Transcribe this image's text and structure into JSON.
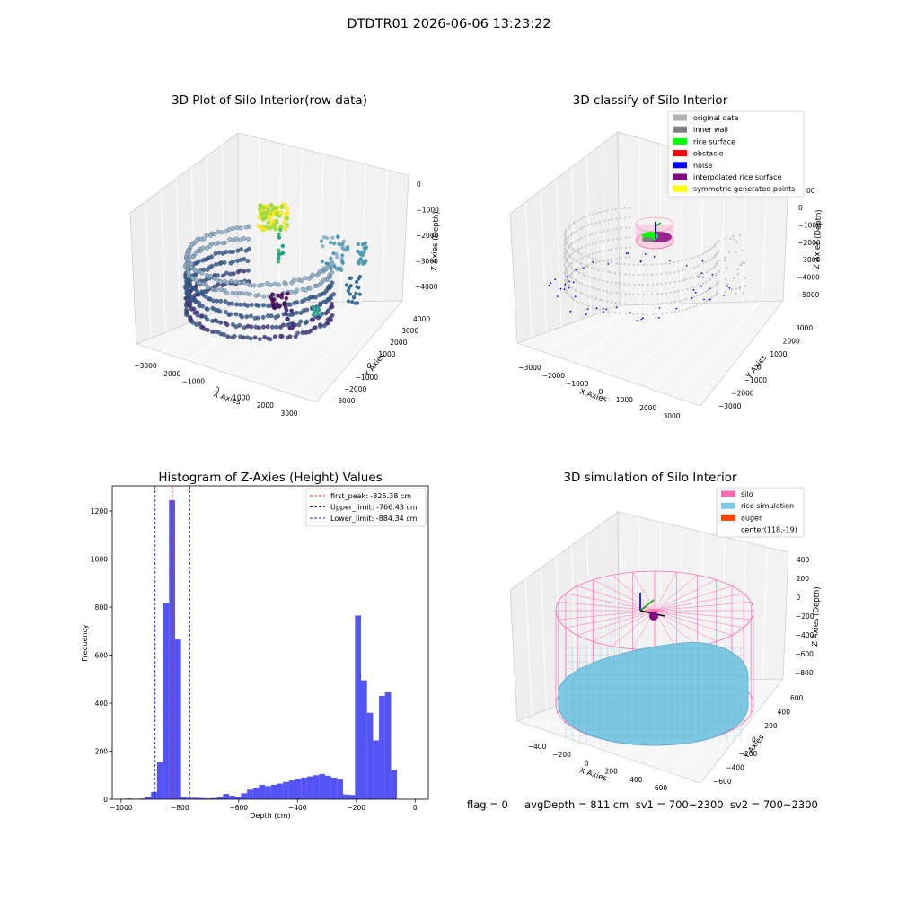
{
  "suptitle": "DTDTR01 2026-06-06 13:23:22",
  "footer": "flag = 0     avgDepth = 811 cm  sv1 = 700~2300  sv2 = 700~2300",
  "colors": {
    "hist_bar": "#4a4af5",
    "first_peak": "#e0302a",
    "limits": "#1f1fb5",
    "silo": "#ff69b4",
    "rice_sim": "#7ec8e3",
    "auger": "#ff4500",
    "pane": "#ececec"
  },
  "chart_data": [
    {
      "type": "scatter",
      "dims": 3,
      "title": "3D Plot of Silo Interior(row data)",
      "xlabel": "X Axies",
      "ylabel": "Y Axies",
      "zlabel": "Z Axies (Depth)",
      "xticks": [
        "−3000",
        "−2000",
        "−1000",
        "0",
        "1000",
        "2000",
        "3000"
      ],
      "yticks": [
        "−3000",
        "−2000",
        "−1000",
        "0",
        "1000",
        "2000",
        "3000",
        "4000"
      ],
      "zticks": [
        "−4000",
        "−3000",
        "−2000",
        "−1000",
        "0"
      ],
      "xlim": [
        -3500,
        3500
      ],
      "ylim": [
        -3500,
        4200
      ],
      "zlim": [
        -4500,
        200
      ],
      "colormap": "viridis"
    },
    {
      "type": "scatter",
      "dims": 3,
      "title": "3D classify of Silo Interior",
      "xlabel": "X Axies",
      "ylabel": "Y Axies",
      "zlabel": "Z Axies (Depth)",
      "xticks": [
        "−3000",
        "−2000",
        "−1000",
        "0",
        "1000",
        "2000",
        "3000"
      ],
      "yticks": [
        "−3000",
        "−2000",
        "−1000",
        "0",
        "1000",
        "2000",
        "3000"
      ],
      "zticks": [
        "−5000",
        "−4000",
        "−3000",
        "−2000",
        "−1000",
        "0"
      ],
      "xlim": [
        -3500,
        3500
      ],
      "ylim": [
        -3500,
        3500
      ],
      "zlim": [
        -5500,
        300
      ],
      "legend_position": "upper right",
      "legend": [
        {
          "label": "original data",
          "color": "#b0b0b0"
        },
        {
          "label": "inner wall",
          "color": "#808080"
        },
        {
          "label": "rice surface",
          "color": "#00ff00"
        },
        {
          "label": "obstacle",
          "color": "#ff0000"
        },
        {
          "label": "noise",
          "color": "#0000ff"
        },
        {
          "label": "interpolated rice surface",
          "color": "#800080"
        },
        {
          "label": "symmetric generated points",
          "color": "#ffff00"
        }
      ],
      "extra_tick": "00"
    },
    {
      "type": "bar",
      "title": "Histogram of Z-Axies (Height) Values",
      "xlabel": "Depth (cm)",
      "ylabel": "Frequency",
      "xlim": [
        -1030,
        45
      ],
      "ylim": [
        0,
        1305
      ],
      "xticks": [
        -1000,
        -800,
        -600,
        -400,
        -200,
        0
      ],
      "xtick_labels": [
        "−1000",
        "−800",
        "−600",
        "−400",
        "−200",
        "0"
      ],
      "yticks": [
        0,
        200,
        400,
        600,
        800,
        1000,
        1200
      ],
      "yticklabels": [
        "0",
        "200",
        "400",
        "600",
        "800",
        "1000",
        "1200"
      ],
      "bin_start": -1000,
      "bin_width": 20.4,
      "values": [
        2,
        3,
        1,
        3,
        10,
        30,
        155,
        815,
        1245,
        665,
        8,
        6,
        6,
        5,
        4,
        5,
        8,
        22,
        15,
        10,
        25,
        40,
        48,
        60,
        55,
        60,
        65,
        72,
        78,
        85,
        90,
        95,
        100,
        105,
        98,
        90,
        82,
        20,
        18,
        765,
        495,
        360,
        245,
        430,
        445,
        120
      ],
      "lines": [
        {
          "label": "first_peak: -825.38 cm",
          "x": -825.38,
          "color": "#e0302a"
        },
        {
          "label": "Upper_limit: -766.43 cm",
          "x": -766.43,
          "color": "#1f1fb5"
        },
        {
          "label": "Lower_limit: -884.34 cm",
          "x": -884.34,
          "color": "#1f1fb5"
        }
      ],
      "legend_position": "upper right"
    },
    {
      "type": "scatter",
      "dims": 3,
      "title": "3D simulation of Silo Interior",
      "xlabel": "X Axies",
      "ylabel": "Y Axies",
      "zlabel": "Z Axies (Depth)",
      "xticks": [
        "−400",
        "−200",
        "0",
        "200",
        "400",
        "600"
      ],
      "yticks": [
        "−600",
        "−400",
        "−200",
        "0",
        "200",
        "400",
        "600"
      ],
      "zticks": [
        "−800",
        "−600",
        "−400",
        "−200",
        "0",
        "200",
        "400"
      ],
      "legend_position": "upper right",
      "legend": [
        {
          "label": "silo",
          "color": "#ff69b4"
        },
        {
          "label": "rice simulation",
          "color": "#7ec8e3"
        },
        {
          "label": "auger",
          "color": "#ff4500"
        },
        {
          "label": "center(118,-19)",
          "color": ""
        }
      ]
    }
  ]
}
